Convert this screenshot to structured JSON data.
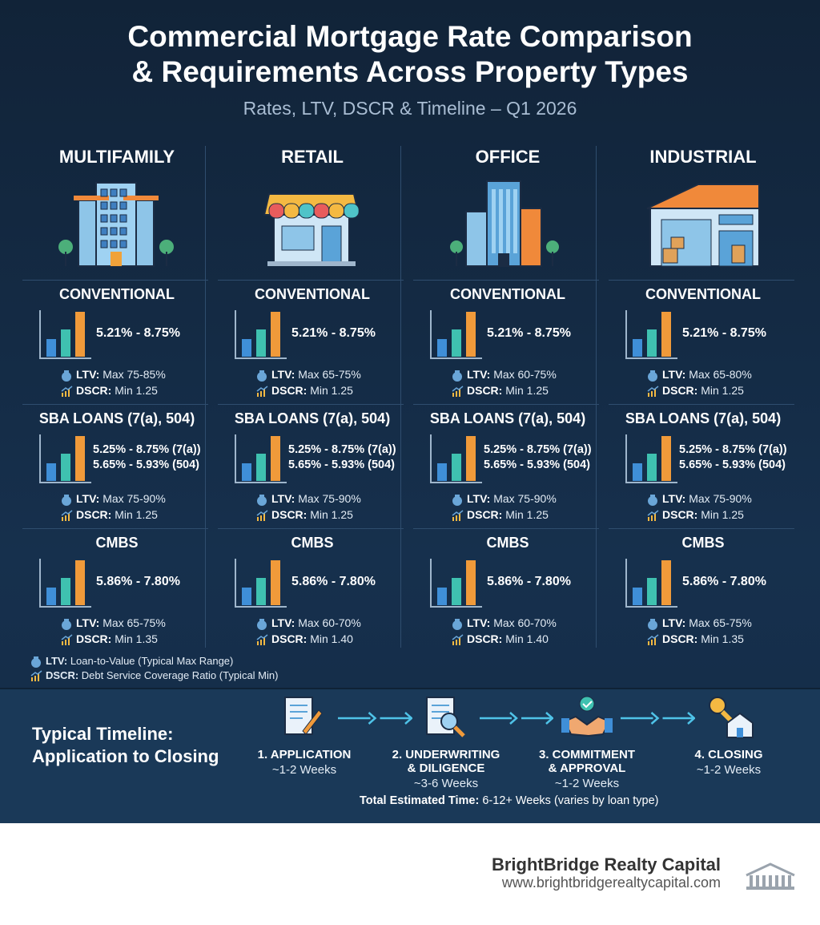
{
  "header": {
    "title": [
      "Commercial Mortgage Rate Comparison",
      "& Requirements Across Property Types"
    ],
    "subtitle": "Rates, LTV, DSCR & Timeline – Q1 2026"
  },
  "columns": [
    {
      "name": "MULTIFAMILY",
      "loans": [
        {
          "name": "CONVENTIONAL",
          "rates": [
            "5.21% - 8.75%"
          ],
          "ltv": "Max 75-85%",
          "dscr": "Min 1.25"
        },
        {
          "name": "SBA LOANS (7(a), 504)",
          "rates": [
            "5.25% - 8.75% (7(a))",
            "5.65% - 5.93% (504)"
          ],
          "ltv": "Max 75-90%",
          "dscr": "Min 1.25"
        },
        {
          "name": "CMBS",
          "rates": [
            "5.86% - 7.80%"
          ],
          "ltv": "Max 65-75%",
          "dscr": "Min 1.35"
        }
      ]
    },
    {
      "name": "RETAIL",
      "loans": [
        {
          "name": "CONVENTIONAL",
          "rates": [
            "5.21% - 8.75%"
          ],
          "ltv": "Max 65-75%",
          "dscr": "Min 1.25"
        },
        {
          "name": "SBA LOANS (7(a), 504)",
          "rates": [
            "5.25% - 8.75% (7(a))",
            "5.65% - 5.93% (504)"
          ],
          "ltv": "Max 75-90%",
          "dscr": "Min 1.25"
        },
        {
          "name": "CMBS",
          "rates": [
            "5.86% - 7.80%"
          ],
          "ltv": "Max 60-70%",
          "dscr": "Min 1.40"
        }
      ]
    },
    {
      "name": "OFFICE",
      "loans": [
        {
          "name": "CONVENTIONAL",
          "rates": [
            "5.21% - 8.75%"
          ],
          "ltv": "Max 60-75%",
          "dscr": "Min 1.25"
        },
        {
          "name": "SBA LOANS (7(a), 504)",
          "rates": [
            "5.25% - 8.75% (7(a))",
            "5.65% - 5.93% (504)"
          ],
          "ltv": "Max 75-90%",
          "dscr": "Min 1.25"
        },
        {
          "name": "CMBS",
          "rates": [
            "5.86% - 7.80%"
          ],
          "ltv": "Max 60-70%",
          "dscr": "Min 1.40"
        }
      ]
    },
    {
      "name": "INDUSTRIAL",
      "loans": [
        {
          "name": "CONVENTIONAL",
          "rates": [
            "5.21% - 8.75%"
          ],
          "ltv": "Max 65-80%",
          "dscr": "Min 1.25"
        },
        {
          "name": "SBA LOANS (7(a), 504)",
          "rates": [
            "5.25% - 8.75% (7(a))",
            "5.65% - 5.93% (504)"
          ],
          "ltv": "Max 75-90%",
          "dscr": "Min 1.25"
        },
        {
          "name": "CMBS",
          "rates": [
            "5.86% - 7.80%"
          ],
          "ltv": "Max 65-75%",
          "dscr": "Min 1.35"
        }
      ]
    }
  ],
  "legend": [
    {
      "label": "LTV:",
      "text": "Loan-to-Value (Typical Max Range)"
    },
    {
      "label": "DSCR:",
      "text": "Debt Service Coverage Ratio (Typical Min)"
    }
  ],
  "timeline": {
    "heading": [
      "Typical Timeline:",
      "Application to Closing"
    ],
    "steps": [
      {
        "title": [
          "1. APPLICATION"
        ],
        "duration": "~1-2 Weeks"
      },
      {
        "title": [
          "2. UNDERWRITING",
          "& DILIGENCE"
        ],
        "duration": "~3-6 Weeks"
      },
      {
        "title": [
          "3. COMMITMENT",
          "& APPROVAL"
        ],
        "duration": "~1-2 Weeks"
      },
      {
        "title": [
          "4. CLOSING"
        ],
        "duration": "~1-2 Weeks"
      }
    ],
    "total_label": "Total Estimated Time:",
    "total_text": "6-12+ Weeks (varies by loan type)"
  },
  "footer": {
    "company": "BrightBridge Realty Capital",
    "url": "www.brightbridgerealtycapital.com"
  }
}
